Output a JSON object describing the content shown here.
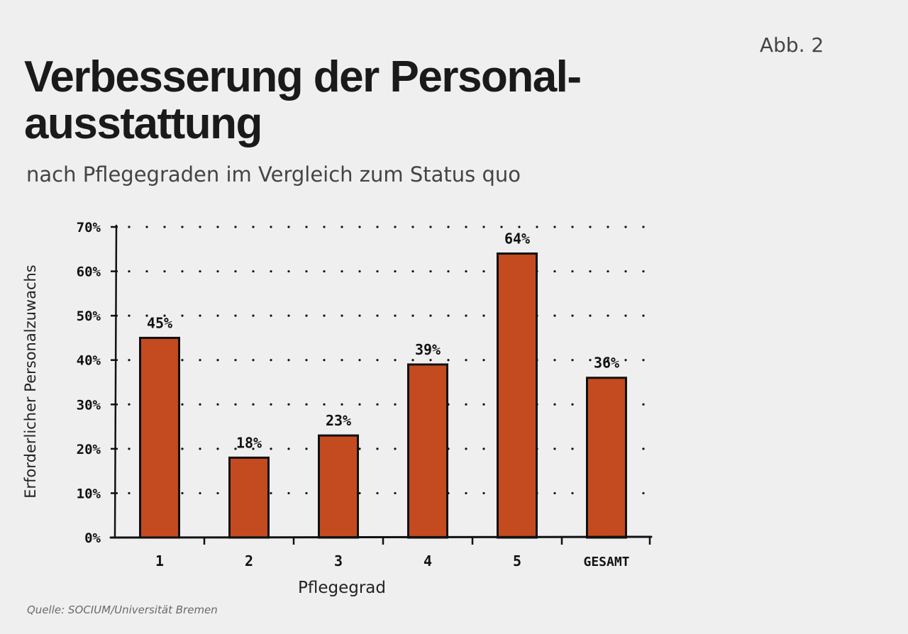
{
  "figure_label": "Abb. 2",
  "title": "Verbesserung der Personal-ausstattung",
  "subtitle": "nach Pflegegraden im Vergleich zum Status quo",
  "source": "Quelle: SOCIUM/Universität Bremen",
  "colors": {
    "bar": "#c44b1f",
    "outline": "#111111",
    "background": "#efefef"
  },
  "chart_data": {
    "type": "bar",
    "categories": [
      "1",
      "2",
      "3",
      "4",
      "5",
      "GESAMT"
    ],
    "values": [
      45,
      18,
      23,
      39,
      64,
      36
    ],
    "value_labels": [
      "45%",
      "18%",
      "23%",
      "39%",
      "64%",
      "36%"
    ],
    "xlabel": "Pflegegrad",
    "ylabel": "Erforderlicher Personalzuwachs",
    "ylim": [
      0,
      70
    ],
    "yticks": [
      0,
      10,
      20,
      30,
      40,
      50,
      60,
      70
    ],
    "ytick_labels": [
      "0%",
      "10%",
      "20%",
      "30%",
      "40%",
      "50%",
      "60%",
      "70%"
    ],
    "grid": "dotted",
    "legend": false
  }
}
